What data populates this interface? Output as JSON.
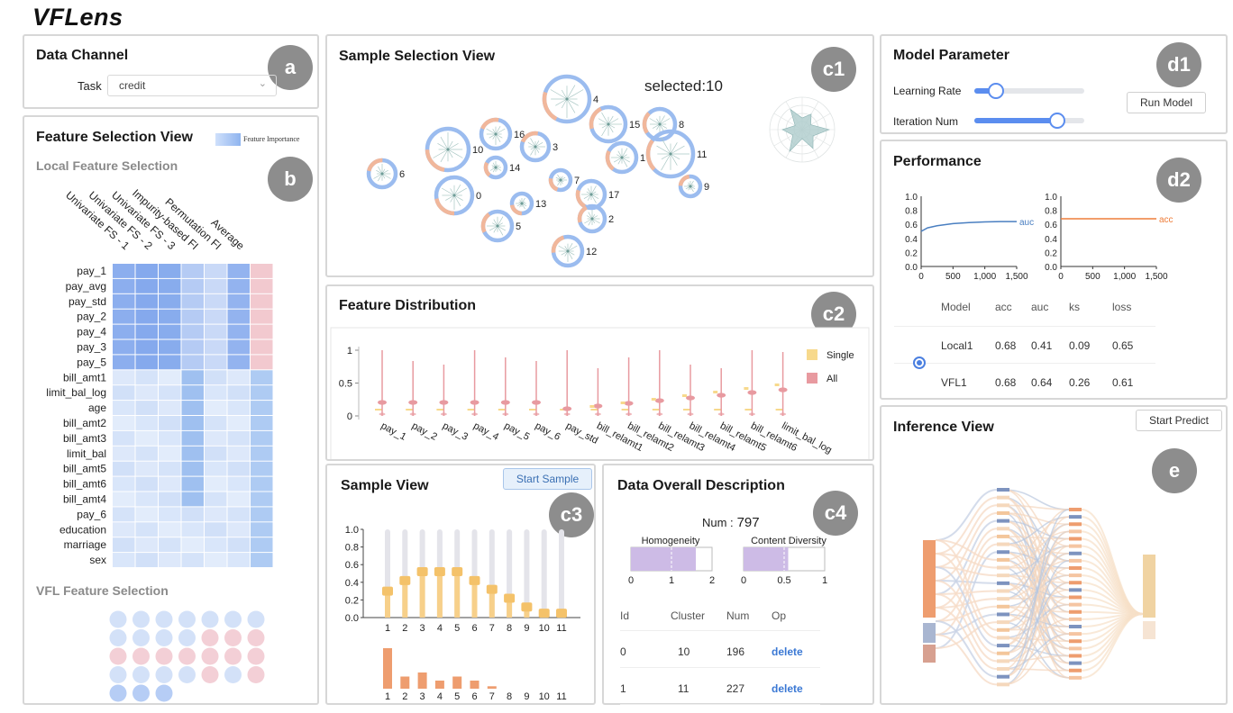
{
  "app": {
    "title": "VFLens"
  },
  "badges": {
    "a": "a",
    "b": "b",
    "c1": "c1",
    "c2": "c2",
    "c3": "c3",
    "c4": "c4",
    "d1": "d1",
    "d2": "d2",
    "e": "e"
  },
  "data_channel": {
    "title": "Data Channel",
    "task_label": "Task",
    "task_value": "credit"
  },
  "feature_selection": {
    "title": "Feature Selection View",
    "legend": "Feature Importance",
    "local_title": "Local Feature Selection",
    "vfl_title": "VFL Feature Selection",
    "columns": [
      "Univariate FS - 1",
      "Univariate FS - 2",
      "Univariate FS - 3",
      "Impurity-based FI",
      "Permutation FI",
      "Average"
    ],
    "rows": [
      "pay_1",
      "pay_avg",
      "pay_std",
      "pay_2",
      "pay_4",
      "pay_3",
      "pay_5",
      "bill_amt1",
      "limit_bal_log",
      "age",
      "bill_amt2",
      "bill_amt3",
      "limit_bal",
      "bill_amt5",
      "bill_amt6",
      "bill_amt4",
      "pay_6",
      "education",
      "marriage",
      "sex"
    ]
  },
  "sample_selection": {
    "title": "Sample Selection View",
    "selected_text": "selected:10",
    "clusters": [
      {
        "id": "4"
      },
      {
        "id": "15"
      },
      {
        "id": "8"
      },
      {
        "id": "16"
      },
      {
        "id": "10"
      },
      {
        "id": "3"
      },
      {
        "id": "14"
      },
      {
        "id": "1"
      },
      {
        "id": "11"
      },
      {
        "id": "6"
      },
      {
        "id": "7"
      },
      {
        "id": "9"
      },
      {
        "id": "0"
      },
      {
        "id": "13"
      },
      {
        "id": "17"
      },
      {
        "id": "2"
      },
      {
        "id": "5"
      },
      {
        "id": "12"
      }
    ]
  },
  "feature_distribution": {
    "title": "Feature Distribution",
    "y_ticks": [
      "1",
      "0.5",
      "0"
    ],
    "features": [
      "pay_1",
      "pay_2",
      "pay_3",
      "pay_4",
      "pay_5",
      "pay_6",
      "pay_std",
      "bill_relamt1",
      "bill_relamt2",
      "bill_relamt3",
      "bill_relamt4",
      "bill_relamt5",
      "bill_relamt6",
      "limit_bal_log"
    ],
    "legend": [
      "Single",
      "All"
    ],
    "colors": {
      "single": "#f7d98c",
      "all": "#e89aa0"
    }
  },
  "sample_view": {
    "title": "Sample View",
    "button": "Start Sample",
    "y_ticks": [
      "1.0",
      "0.8",
      "0.6",
      "0.4",
      "0.2",
      "0.0"
    ],
    "x_labels": [
      "1",
      "2",
      "3",
      "4",
      "5",
      "6",
      "7",
      "8",
      "9",
      "10",
      "11"
    ],
    "chart_data": {
      "type": "bar",
      "categories": [
        "1",
        "2",
        "3",
        "4",
        "5",
        "6",
        "7",
        "8",
        "9",
        "10",
        "11"
      ],
      "series": [
        {
          "values": [
            0.3,
            0.42,
            0.52,
            0.52,
            0.52,
            0.42,
            0.32,
            0.22,
            0.12,
            0.05,
            0.05
          ]
        },
        {
          "values": [
            1.0,
            0.3,
            0.4,
            0.2,
            0.3,
            0.2,
            0.06,
            0,
            0,
            0,
            0
          ]
        }
      ],
      "ylim": [
        0,
        1
      ]
    }
  },
  "data_description": {
    "title": "Data Overall Description",
    "num_label": "Num :",
    "num_value": "797",
    "homogeneity_label": "Homogeneity",
    "homogeneity_ticks": [
      "0",
      "1",
      "2"
    ],
    "homogeneity_value": 1.6,
    "diversity_label": "Content Diversity",
    "diversity_ticks": [
      "0",
      "0.5",
      "1"
    ],
    "diversity_value": 0.55,
    "table_headers": [
      "Id",
      "Cluster",
      "Num",
      "Op"
    ],
    "table_rows": [
      {
        "id": "0",
        "cluster": "10",
        "num": "196",
        "op": "delete"
      },
      {
        "id": "1",
        "cluster": "11",
        "num": "227",
        "op": "delete"
      }
    ]
  },
  "model_parameter": {
    "title": "Model Parameter",
    "learning_rate_label": "Learning Rate",
    "learning_rate_value": 0.2,
    "iteration_label": "Iteration Num",
    "iteration_value": 0.75,
    "run_button": "Run Model"
  },
  "performance": {
    "title": "Performance",
    "y_ticks": [
      "1.0",
      "0.8",
      "0.6",
      "0.4",
      "0.2",
      "0.0"
    ],
    "x_ticks": [
      "0",
      "500",
      "1,000",
      "1,500"
    ],
    "chart_data": [
      {
        "type": "line",
        "series": [
          {
            "name": "auc",
            "x": [
              0,
              100,
              250,
              500,
              750,
              1000,
              1250,
              1500
            ],
            "y": [
              0.5,
              0.55,
              0.58,
              0.61,
              0.625,
              0.635,
              0.64,
              0.64
            ]
          }
        ],
        "xlim": [
          0,
          1500
        ],
        "ylim": [
          0,
          1
        ]
      },
      {
        "type": "line",
        "series": [
          {
            "name": "acc",
            "x": [
              0,
              1500
            ],
            "y": [
              0.68,
              0.68
            ]
          }
        ],
        "xlim": [
          0,
          1500
        ],
        "ylim": [
          0,
          1
        ]
      }
    ],
    "colors": {
      "auc": "#4a7fc1",
      "acc": "#ee7d3a"
    },
    "table_headers": [
      "Model",
      "acc",
      "auc",
      "ks",
      "loss"
    ],
    "table_rows": [
      {
        "model": "Local1",
        "acc": "0.68",
        "auc": "0.41",
        "ks": "0.09",
        "loss": "0.65"
      },
      {
        "model": "VFL1",
        "acc": "0.68",
        "auc": "0.64",
        "ks": "0.26",
        "loss": "0.61"
      }
    ]
  },
  "inference": {
    "title": "Inference View",
    "button": "Start Predict"
  }
}
